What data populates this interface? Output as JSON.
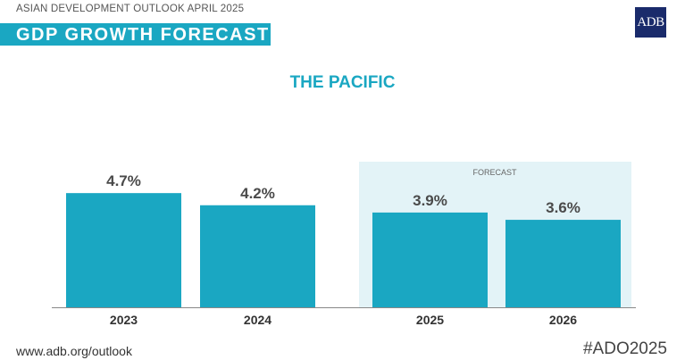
{
  "header": {
    "supertitle": "ASIAN DEVELOPMENT OUTLOOK APRIL 2025",
    "title": "GDP GROWTH FORECAST",
    "logo": "ADB"
  },
  "footer": {
    "url": "www.adb.org/outlook",
    "hashtag": "#ADO2025"
  },
  "colors": {
    "bar": "#1aa7c2",
    "forecast_bg": "#e3f3f7",
    "title": "#1aa7c2"
  },
  "chart_data": {
    "type": "bar",
    "title": "THE PACIFIC",
    "categories": [
      "2023",
      "2024",
      "2025",
      "2026"
    ],
    "values": [
      4.7,
      4.2,
      3.9,
      3.6
    ],
    "data_labels": [
      "4.7%",
      "4.2%",
      "3.9%",
      "3.6%"
    ],
    "forecast_label": "FORECAST",
    "forecast_categories": [
      "2025",
      "2026"
    ],
    "ylim": [
      0,
      5.5
    ],
    "grid": false
  }
}
